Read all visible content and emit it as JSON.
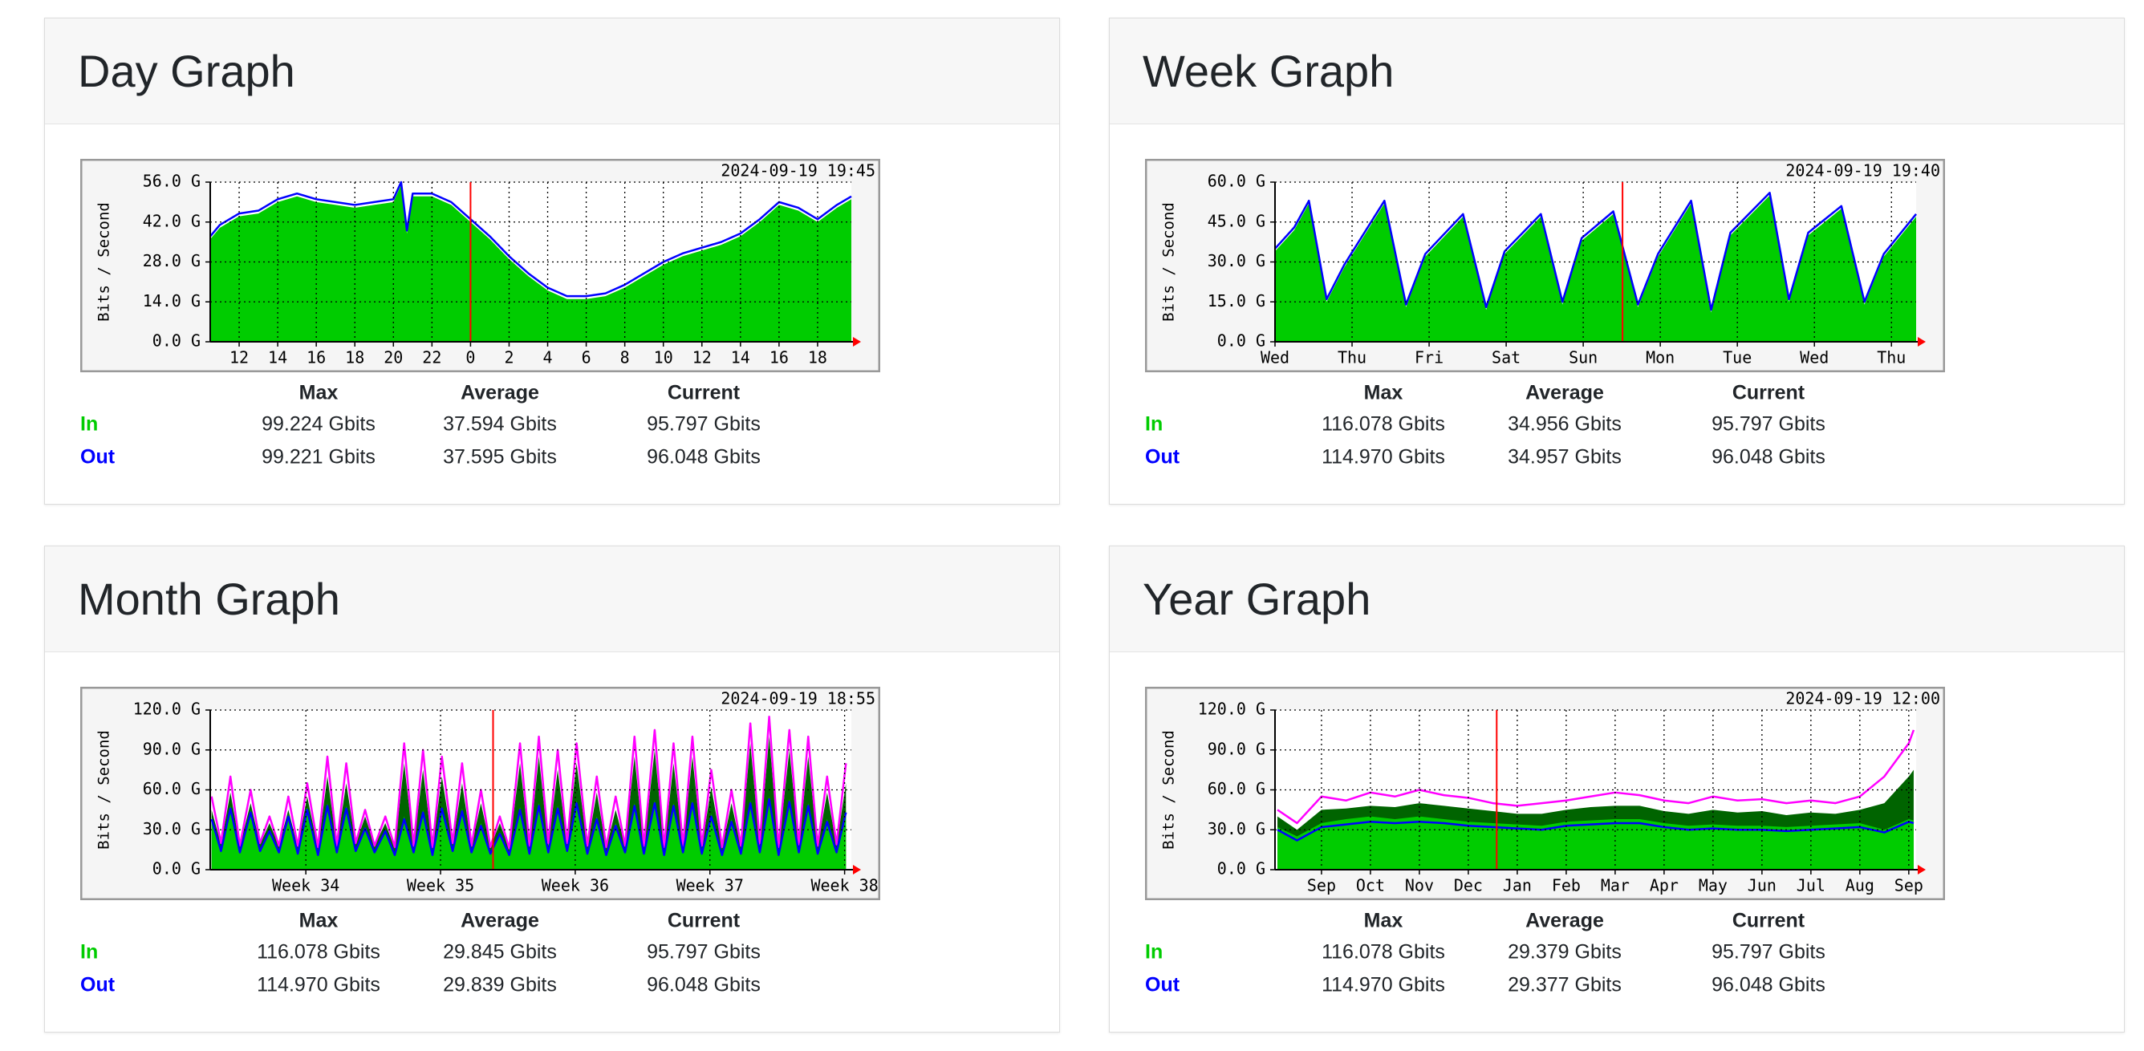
{
  "chart_data": [
    {
      "type": "area",
      "title": "Day Graph",
      "timestamp": "2024-09-19 19:45",
      "y_label": "Bits / Second",
      "x": [
        10.5,
        11,
        12,
        13,
        14,
        15,
        16,
        17,
        18,
        19,
        20,
        20.4,
        20.7,
        21,
        22,
        23,
        24,
        25,
        26,
        27,
        28,
        29,
        30,
        31,
        32,
        33,
        34,
        35,
        36,
        37,
        38,
        39,
        40,
        41,
        42,
        43,
        43.75
      ],
      "series": [
        {
          "name": "In",
          "color": "#00cc00",
          "fill": true,
          "values": [
            36,
            40,
            44,
            45,
            49,
            51,
            49,
            48,
            47,
            48,
            49,
            55,
            38,
            51,
            51,
            48,
            42,
            36,
            29,
            23,
            18,
            15,
            15,
            16,
            19,
            23,
            27,
            30,
            32,
            34,
            37,
            42,
            48,
            46,
            42,
            47,
            50
          ]
        },
        {
          "name": "Out",
          "color": "#0000ff",
          "fill": false,
          "values": [
            37,
            41,
            45,
            46,
            50,
            52,
            50,
            49,
            48,
            49,
            50,
            56,
            39,
            52,
            52,
            49,
            43,
            37,
            30,
            24,
            19,
            16,
            16,
            17,
            20,
            24,
            28,
            31,
            33,
            35,
            38,
            43,
            49,
            47,
            43,
            48,
            51
          ]
        }
      ],
      "xlim": [
        10.5,
        43.75
      ],
      "xticks": [
        12,
        14,
        16,
        18,
        20,
        22,
        {
          "value": 24,
          "label": "0"
        },
        {
          "value": 26,
          "label": "2"
        },
        {
          "value": 28,
          "label": "4"
        },
        {
          "value": 30,
          "label": "6"
        },
        {
          "value": 32,
          "label": "8"
        },
        {
          "value": 34,
          "label": "10"
        },
        {
          "value": 36,
          "label": "12"
        },
        {
          "value": 38,
          "label": "14"
        },
        {
          "value": 40,
          "label": "16"
        },
        {
          "value": 42,
          "label": "18"
        }
      ],
      "ylim": [
        0,
        56
      ],
      "yticks": [
        {
          "value": 0,
          "label": "0.0 G"
        },
        {
          "value": 14,
          "label": "14.0 G"
        },
        {
          "value": 28,
          "label": "28.0 G"
        },
        {
          "value": 42,
          "label": "42.0 G"
        },
        {
          "value": 56,
          "label": "56.0 G"
        }
      ],
      "marker_x": 24,
      "grid": true,
      "stats": {
        "columns": [
          "Max",
          "Average",
          "Current"
        ],
        "rows": [
          [
            "99.224 Gbits",
            "37.594 Gbits",
            "95.797 Gbits"
          ],
          [
            "99.221 Gbits",
            "37.595 Gbits",
            "96.048 Gbits"
          ]
        ]
      }
    },
    {
      "type": "area",
      "title": "Week Graph",
      "timestamp": "2024-09-19 19:40",
      "y_label": "Bits / Second",
      "x": [
        0,
        0.25,
        0.44,
        0.67,
        0.9,
        1.42,
        1.7,
        1.95,
        2.44,
        2.74,
        2.98,
        3.45,
        3.73,
        3.98,
        4.39,
        4.71,
        4.97,
        5.4,
        5.66,
        5.91,
        6.42,
        6.67,
        6.92,
        7.35,
        7.65,
        7.9,
        8.32
      ],
      "series": [
        {
          "name": "In",
          "color": "#00cc00",
          "fill": true,
          "values": [
            34,
            42,
            52,
            15,
            28,
            52,
            13,
            32,
            47,
            12,
            33,
            47,
            14,
            38,
            48,
            13,
            32,
            52,
            11,
            40,
            55,
            15,
            40,
            50,
            14,
            32,
            47
          ]
        },
        {
          "name": "Out",
          "color": "#0000ff",
          "fill": false,
          "values": [
            35,
            43,
            53,
            16,
            29,
            53,
            14,
            33,
            48,
            13,
            34,
            48,
            15,
            39,
            49,
            14,
            33,
            53,
            12,
            41,
            56,
            16,
            41,
            51,
            15,
            33,
            48
          ]
        }
      ],
      "xlim": [
        0,
        8.32
      ],
      "xticks": [
        {
          "value": 0,
          "label": "Wed"
        },
        {
          "value": 1,
          "label": "Thu"
        },
        {
          "value": 2,
          "label": "Fri"
        },
        {
          "value": 3,
          "label": "Sat"
        },
        {
          "value": 4,
          "label": "Sun"
        },
        {
          "value": 5,
          "label": "Mon"
        },
        {
          "value": 6,
          "label": "Tue"
        },
        {
          "value": 7,
          "label": "Wed"
        },
        {
          "value": 8,
          "label": "Thu"
        }
      ],
      "ylim": [
        0,
        60
      ],
      "yticks": [
        {
          "value": 0,
          "label": "0.0 G"
        },
        {
          "value": 15,
          "label": "15.0 G"
        },
        {
          "value": 30,
          "label": "30.0 G"
        },
        {
          "value": 45,
          "label": "45.0 G"
        },
        {
          "value": 60,
          "label": "60.0 G"
        }
      ],
      "marker_x": 4.51,
      "grid": true,
      "stats": {
        "columns": [
          "Max",
          "Average",
          "Current"
        ],
        "rows": [
          [
            "116.078 Gbits",
            "34.956 Gbits",
            "95.797 Gbits"
          ],
          [
            "114.970 Gbits",
            "34.957 Gbits",
            "96.048 Gbits"
          ]
        ]
      }
    },
    {
      "type": "area",
      "title": "Month Graph",
      "timestamp": "2024-09-19 18:55",
      "y_label": "Bits / Second",
      "x": [
        33.3,
        33.37,
        33.44,
        33.51,
        33.59,
        33.66,
        33.73,
        33.8,
        33.87,
        33.94,
        34.01,
        34.09,
        34.16,
        34.23,
        34.3,
        34.37,
        34.44,
        34.51,
        34.59,
        34.66,
        34.73,
        34.8,
        34.87,
        34.94,
        35.01,
        35.09,
        35.16,
        35.23,
        35.3,
        35.37,
        35.44,
        35.51,
        35.59,
        35.66,
        35.73,
        35.8,
        35.87,
        35.94,
        36.01,
        36.09,
        36.16,
        36.23,
        36.3,
        36.37,
        36.44,
        36.51,
        36.59,
        36.66,
        36.73,
        36.8,
        36.87,
        36.94,
        37.01,
        37.09,
        37.16,
        37.23,
        37.3,
        37.37,
        37.44,
        37.51,
        37.59,
        37.66,
        37.73,
        37.8,
        37.87,
        37.94,
        38.01
      ],
      "series": [
        {
          "name": "In",
          "color": "#00cc00",
          "fill": true,
          "values": [
            40,
            15,
            48,
            14,
            45,
            15,
            30,
            14,
            42,
            13,
            47,
            12,
            50,
            14,
            48,
            15,
            32,
            14,
            30,
            12,
            40,
            14,
            45,
            12,
            48,
            15,
            46,
            14,
            35,
            13,
            28,
            12,
            47,
            13,
            50,
            14,
            48,
            15,
            52,
            13,
            40,
            12,
            35,
            14,
            50,
            13,
            52,
            12,
            50,
            14,
            52,
            13,
            42,
            12,
            38,
            13,
            52,
            14,
            55,
            12,
            53,
            14,
            50,
            13,
            38,
            14,
            45
          ]
        },
        {
          "name": "Out",
          "color": "#0000ff",
          "fill": false,
          "values": [
            38,
            14,
            46,
            13,
            43,
            14,
            29,
            13,
            40,
            12,
            45,
            11,
            48,
            13,
            46,
            14,
            31,
            13,
            29,
            11,
            38,
            13,
            43,
            11,
            46,
            14,
            44,
            13,
            33,
            12,
            27,
            11,
            45,
            12,
            48,
            13,
            46,
            14,
            50,
            12,
            38,
            11,
            33,
            13,
            48,
            12,
            50,
            11,
            48,
            13,
            50,
            12,
            40,
            11,
            36,
            12,
            50,
            13,
            53,
            11,
            51,
            13,
            48,
            12,
            36,
            13,
            43
          ]
        },
        {
          "color": "#006400",
          "fill": true,
          "values": [
            45,
            19,
            58,
            18,
            50,
            19,
            35,
            18,
            45,
            17,
            55,
            16,
            70,
            18,
            65,
            19,
            40,
            18,
            35,
            16,
            80,
            18,
            75,
            16,
            70,
            19,
            65,
            18,
            50,
            17,
            35,
            16,
            80,
            17,
            85,
            18,
            75,
            19,
            80,
            17,
            58,
            16,
            45,
            18,
            85,
            17,
            90,
            16,
            80,
            18,
            85,
            17,
            62,
            16,
            50,
            17,
            95,
            18,
            100,
            16,
            90,
            18,
            85,
            17,
            58,
            18,
            65
          ]
        },
        {
          "color": "#ff00ff",
          "fill": false,
          "values": [
            55,
            20,
            70,
            18,
            60,
            20,
            40,
            18,
            55,
            18,
            65,
            17,
            85,
            18,
            80,
            20,
            45,
            18,
            40,
            17,
            95,
            18,
            90,
            17,
            85,
            20,
            80,
            18,
            60,
            17,
            40,
            16,
            95,
            18,
            100,
            20,
            90,
            20,
            95,
            18,
            70,
            17,
            55,
            18,
            100,
            18,
            105,
            17,
            95,
            18,
            100,
            18,
            75,
            17,
            60,
            18,
            110,
            20,
            115,
            17,
            105,
            19,
            100,
            18,
            70,
            19,
            80
          ]
        }
      ],
      "xlim": [
        33.29,
        38.05
      ],
      "xticks": [
        {
          "value": 34,
          "label": "Week 34"
        },
        {
          "value": 35,
          "label": "Week 35"
        },
        {
          "value": 36,
          "label": "Week 36"
        },
        {
          "value": 37,
          "label": "Week 37"
        },
        {
          "value": 38,
          "label": "Week 38"
        }
      ],
      "ylim": [
        0,
        120
      ],
      "yticks": [
        {
          "value": 0,
          "label": "0.0 G"
        },
        {
          "value": 30,
          "label": "30.0 G"
        },
        {
          "value": 60,
          "label": "60.0 G"
        },
        {
          "value": 90,
          "label": "90.0 G"
        },
        {
          "value": 120,
          "label": "120.0 G"
        }
      ],
      "marker_x": 35.39,
      "grid": true,
      "stats": {
        "columns": [
          "Max",
          "Average",
          "Current"
        ],
        "rows": [
          [
            "116.078 Gbits",
            "29.845 Gbits",
            "95.797 Gbits"
          ],
          [
            "114.970 Gbits",
            "29.839 Gbits",
            "96.048 Gbits"
          ]
        ]
      }
    },
    {
      "type": "area",
      "title": "Year Graph",
      "timestamp": "2024-09-19 12:00",
      "y_label": "Bits / Second",
      "x": [
        -0.9,
        -0.5,
        0,
        0.5,
        1,
        1.5,
        2,
        2.5,
        3,
        3.5,
        4,
        4.5,
        5,
        5.5,
        6,
        6.5,
        7,
        7.5,
        8,
        8.5,
        9,
        9.5,
        10,
        10.5,
        11,
        11.5,
        12,
        12.1
      ],
      "series": [
        {
          "name": "In",
          "color": "#00cc00",
          "fill": true,
          "values": [
            32,
            25,
            35,
            38,
            40,
            38,
            40,
            38,
            36,
            35,
            34,
            33,
            36,
            37,
            38,
            38,
            35,
            33,
            34,
            33,
            33,
            32,
            33,
            34,
            35,
            30,
            38,
            37
          ]
        },
        {
          "name": "Out",
          "color": "#0000ff",
          "fill": false,
          "values": [
            30,
            22,
            32,
            34,
            36,
            35,
            36,
            35,
            33,
            32,
            31,
            30,
            33,
            34,
            35,
            35,
            32,
            30,
            31,
            30,
            30,
            29,
            30,
            31,
            32,
            28,
            36,
            35
          ]
        },
        {
          "color": "#006400",
          "fill": true,
          "values": [
            40,
            30,
            45,
            46,
            48,
            47,
            50,
            48,
            46,
            44,
            42,
            42,
            45,
            47,
            48,
            48,
            44,
            42,
            45,
            43,
            44,
            41,
            43,
            42,
            45,
            50,
            70,
            75
          ]
        },
        {
          "color": "#ff00ff",
          "fill": false,
          "values": [
            45,
            35,
            55,
            52,
            58,
            55,
            60,
            56,
            54,
            50,
            48,
            50,
            52,
            55,
            58,
            56,
            52,
            50,
            55,
            52,
            53,
            50,
            52,
            50,
            55,
            70,
            95,
            105
          ]
        }
      ],
      "xlim": [
        -0.95,
        12.15
      ],
      "xticks": [
        {
          "value": 0,
          "label": "Sep"
        },
        {
          "value": 1,
          "label": "Oct"
        },
        {
          "value": 2,
          "label": "Nov"
        },
        {
          "value": 3,
          "label": "Dec"
        },
        {
          "value": 4,
          "label": "Jan"
        },
        {
          "value": 5,
          "label": "Feb"
        },
        {
          "value": 6,
          "label": "Mar"
        },
        {
          "value": 7,
          "label": "Apr"
        },
        {
          "value": 8,
          "label": "May"
        },
        {
          "value": 9,
          "label": "Jun"
        },
        {
          "value": 10,
          "label": "Jul"
        },
        {
          "value": 11,
          "label": "Aug"
        },
        {
          "value": 12,
          "label": "Sep"
        }
      ],
      "ylim": [
        0,
        120
      ],
      "yticks": [
        {
          "value": 0,
          "label": "0.0 G"
        },
        {
          "value": 30,
          "label": "30.0 G"
        },
        {
          "value": 60,
          "label": "60.0 G"
        },
        {
          "value": 90,
          "label": "90.0 G"
        },
        {
          "value": 120,
          "label": "120.0 G"
        }
      ],
      "marker_x": 3.58,
      "grid": true,
      "stats": {
        "columns": [
          "Max",
          "Average",
          "Current"
        ],
        "rows": [
          [
            "116.078 Gbits",
            "29.379 Gbits",
            "95.797 Gbits"
          ],
          [
            "114.970 Gbits",
            "29.377 Gbits",
            "96.048 Gbits"
          ]
        ]
      }
    }
  ]
}
